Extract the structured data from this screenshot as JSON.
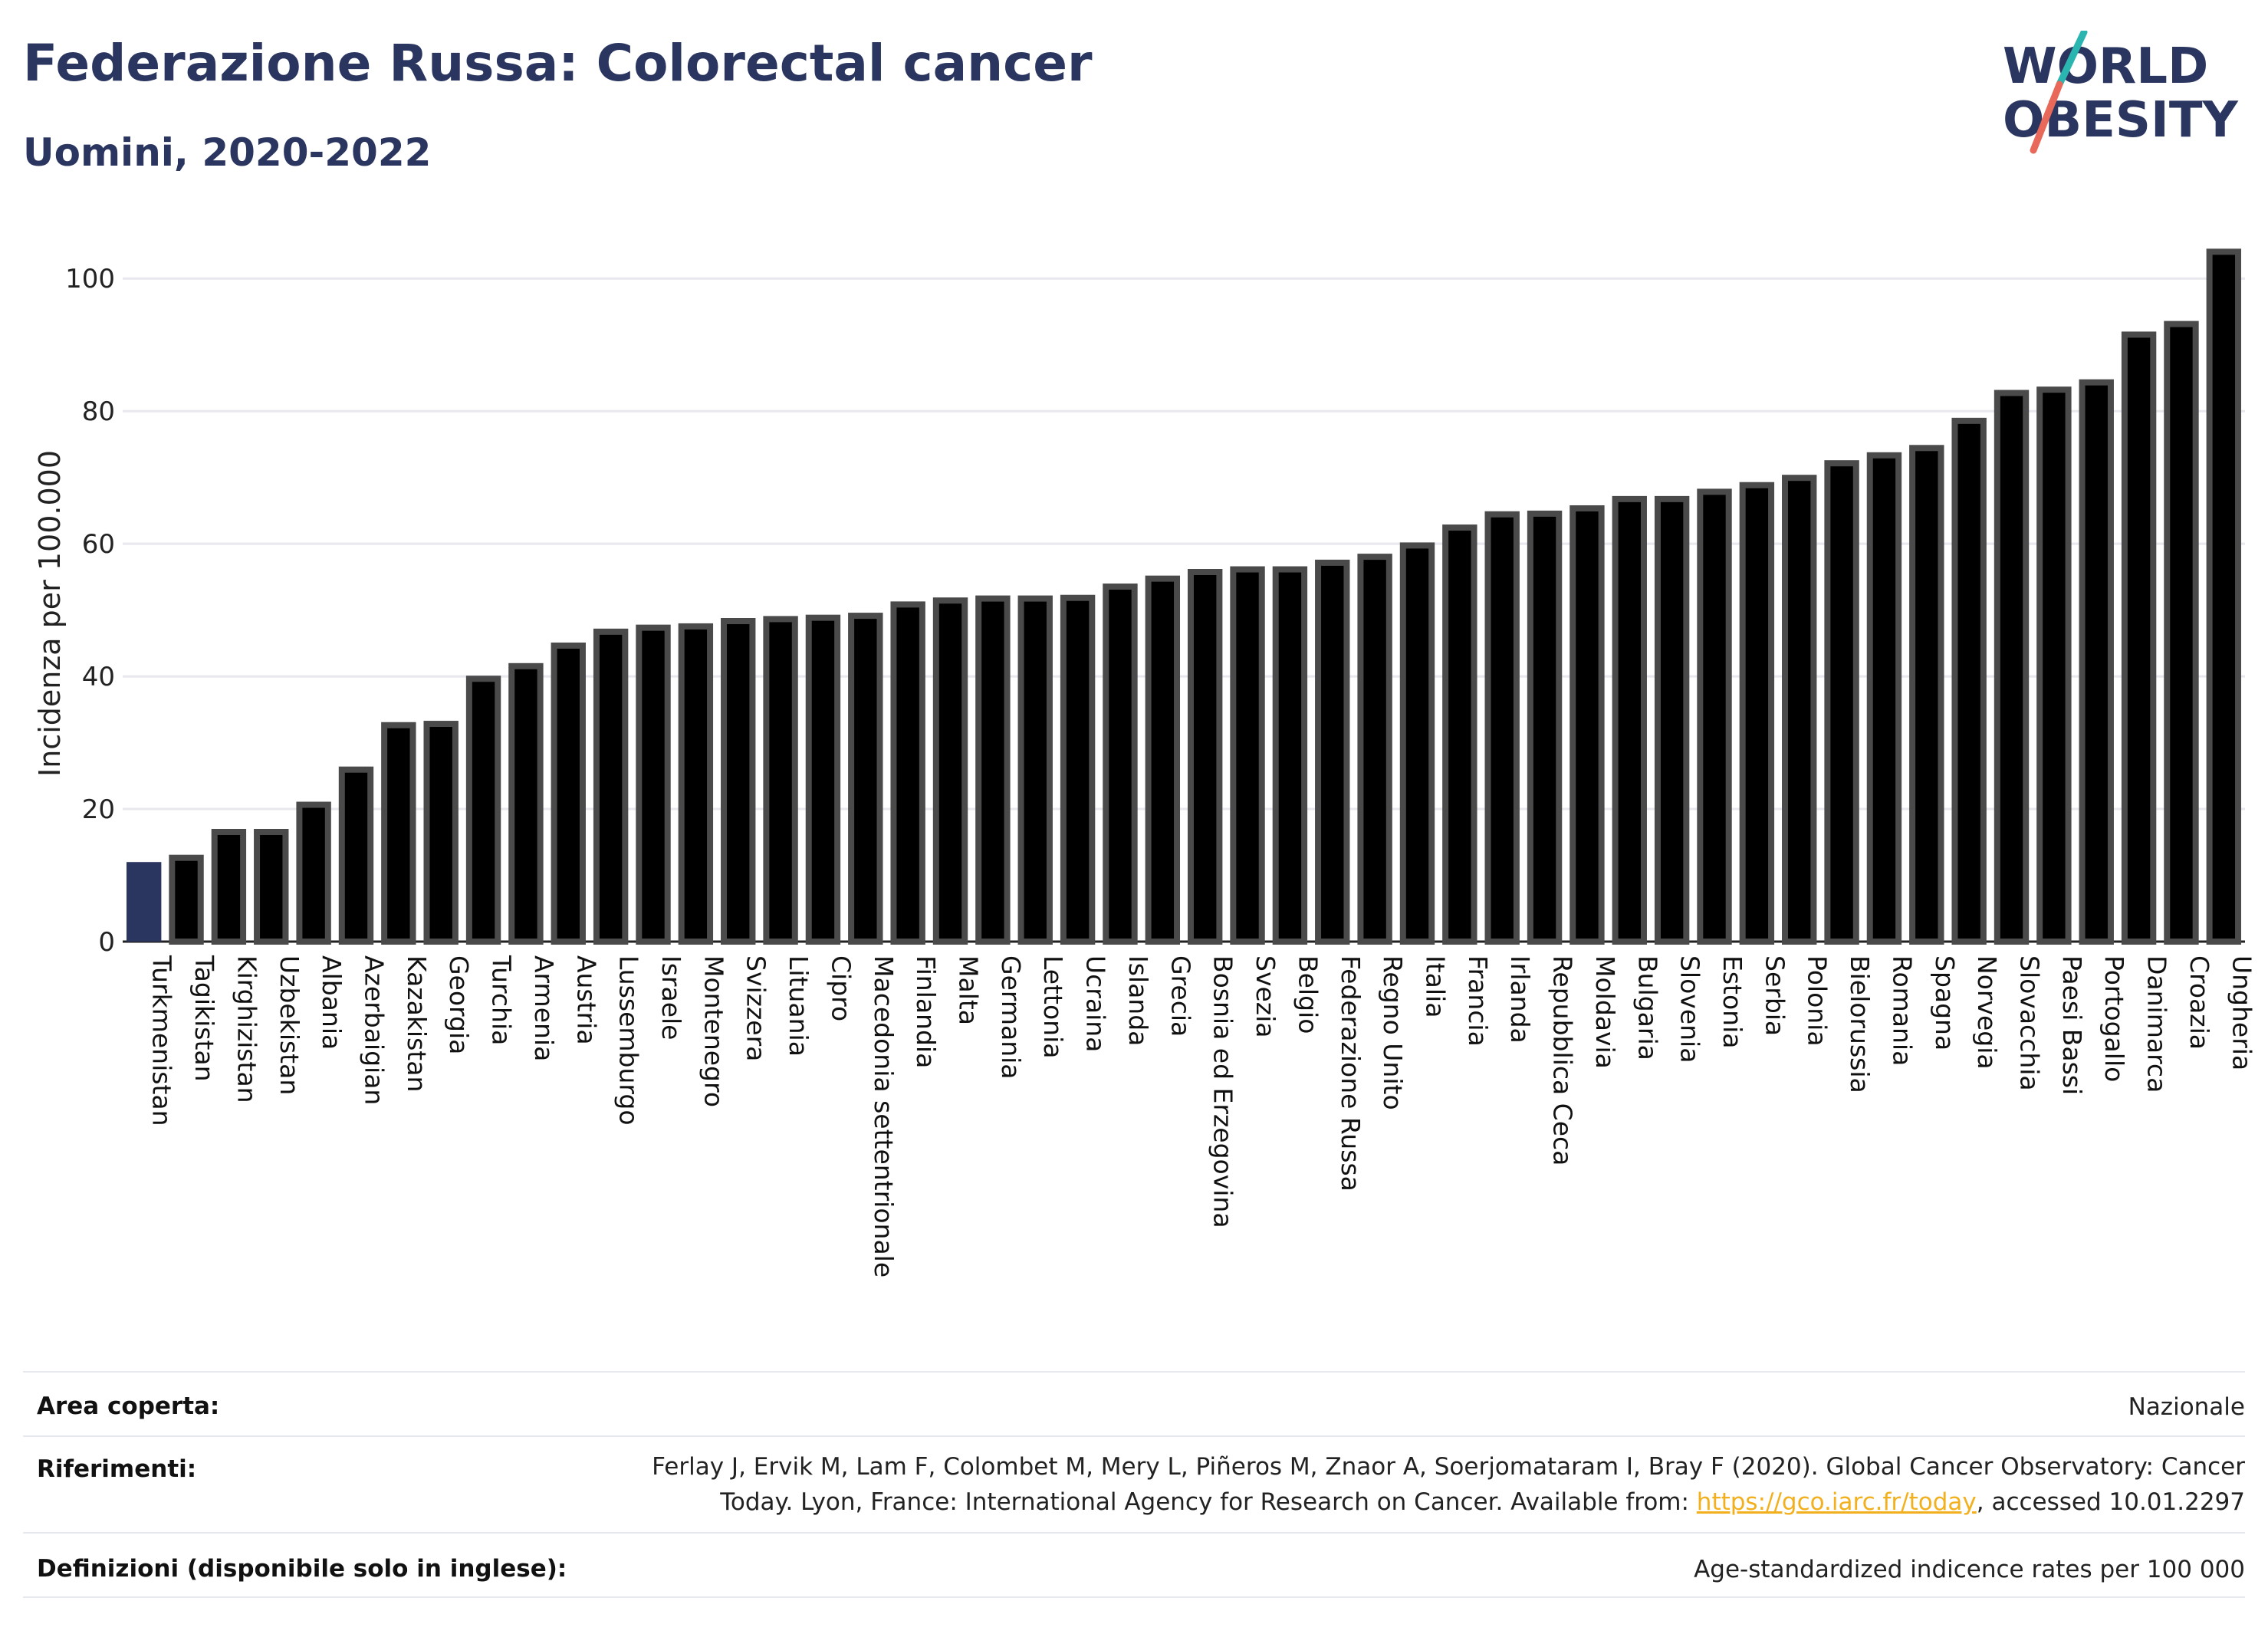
{
  "header": {
    "title": "Federazione Russa: Colorectal cancer",
    "subtitle": "Uomini, 2020-2022"
  },
  "logo": {
    "line1": "WORLD",
    "line2": "OBESITY",
    "text_color": "#2a3560",
    "slash_color_top": "#2bb5b0",
    "slash_color_bottom": "#e8695a"
  },
  "chart_data": {
    "type": "bar",
    "ylabel": "Incidenza per 100.000",
    "ylim": [
      0,
      105
    ],
    "yticks": [
      0,
      20,
      40,
      60,
      80,
      100
    ],
    "grid": true,
    "highlight_color": "#2a3560",
    "bar_color": "#000000",
    "bar_outline": "#4a4a4a",
    "categories": [
      "Turkmenistan",
      "Tagikistan",
      "Kirghizistan",
      "Uzbekistan",
      "Albania",
      "Azerbaigian",
      "Kazakistan",
      "Georgia",
      "Turchia",
      "Armenia",
      "Austria",
      "Lussemburgo",
      "Israele",
      "Montenegro",
      "Svizzera",
      "Lituania",
      "Cipro",
      "Macedonia settentrionale",
      "Finlandia",
      "Malta",
      "Germania",
      "Lettonia",
      "Ucraina",
      "Islanda",
      "Grecia",
      "Bosnia ed Erzegovina",
      "Svezia",
      "Belgio",
      "Federazione Russa",
      "Regno Unito",
      "Italia",
      "Francia",
      "Irlanda",
      "Repubblica Ceca",
      "Moldavia",
      "Bulgaria",
      "Slovenia",
      "Estonia",
      "Serbia",
      "Polonia",
      "Bielorussia",
      "Romania",
      "Spagna",
      "Norvegia",
      "Slovacchia",
      "Paesi Bassi",
      "Portogallo",
      "Danimarca",
      "Croazia",
      "Ungheria"
    ],
    "values": [
      12.0,
      13.1,
      17.0,
      17.0,
      21.1,
      26.4,
      33.1,
      33.3,
      40.1,
      42.0,
      45.1,
      47.2,
      47.8,
      48.0,
      48.8,
      49.1,
      49.3,
      49.6,
      51.3,
      51.9,
      52.2,
      52.2,
      52.3,
      54.0,
      55.2,
      56.2,
      56.6,
      56.6,
      57.6,
      58.5,
      60.2,
      62.9,
      64.9,
      65.0,
      65.8,
      67.2,
      67.2,
      68.3,
      69.3,
      70.4,
      72.6,
      73.8,
      74.9,
      79.0,
      83.2,
      83.7,
      84.8,
      92.0,
      93.6,
      104.5
    ],
    "highlighted": [
      "Turkmenistan"
    ]
  },
  "meta": {
    "area_label": "Area coperta:",
    "area_value": "Nazionale",
    "refs_label": "Riferimenti:",
    "refs_text_1": "Ferlay J, Ervik M, Lam F, Colombet M, Mery L, Piñeros M, Znaor A, Soerjomataram I, Bray F (2020). Global Cancer Observatory: Cancer",
    "refs_text_2a": "Today. Lyon, France: International Agency for Research on Cancer. Available from: ",
    "refs_link": "https://gco.iarc.fr/today",
    "refs_text_2b": ", accessed 10.01.2297",
    "def_label": "Definizioni (disponibile solo in inglese):",
    "def_value": "Age-standardized indicence rates per 100 000"
  }
}
